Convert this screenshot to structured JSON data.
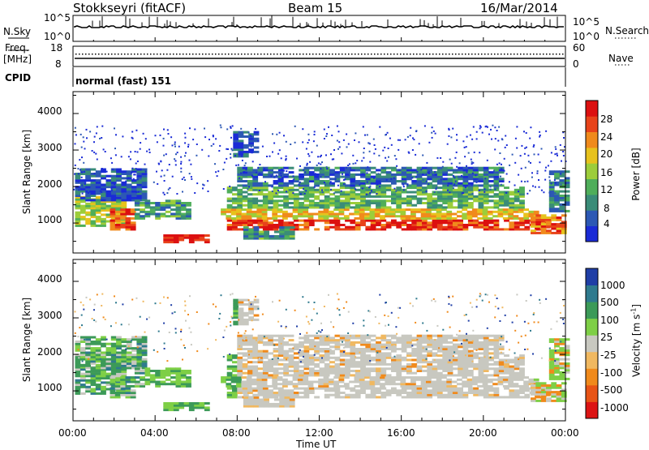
{
  "header": {
    "station": "Stokkseyri (fitACF)",
    "beam": "Beam 15",
    "date": "16/Mar/2014"
  },
  "noise_panel": {
    "left_label": "N.Sky",
    "right_label": "N.Search",
    "ytick_top": "10^5",
    "ytick_bottom": "10^0"
  },
  "freq_panel": {
    "left_label_line1": "Freq.",
    "left_label_line2": "[MHz]",
    "right_label": "Nave",
    "left_ticks": [
      "18",
      "8"
    ],
    "right_ticks": [
      "60",
      "0"
    ]
  },
  "cpid_panel": {
    "label": "CPID",
    "value": "normal (fast) 151"
  },
  "xaxis": {
    "label": "Time UT",
    "ticks": [
      "00:00",
      "04:00",
      "08:00",
      "12:00",
      "16:00",
      "20:00",
      "00:00"
    ]
  },
  "chart_data": [
    {
      "type": "heatmap",
      "panel": "power",
      "ylabel": "Slant Range [km]",
      "xlabel": "Time UT",
      "xlim": [
        0,
        24
      ],
      "ylim": [
        180,
        4600
      ],
      "yticks": [
        "1000",
        "2000",
        "3000",
        "4000"
      ],
      "colorbar": {
        "label": "Power [dB]",
        "ticks": [
          "4",
          "8",
          "12",
          "16",
          "20",
          "24",
          "28"
        ],
        "range": [
          0,
          32
        ],
        "colors": [
          "#1a2bd6",
          "#2c58b4",
          "#3a8c78",
          "#4fae5a",
          "#9ccd3a",
          "#e7c21d",
          "#f08a1c",
          "#e8431a",
          "#dc1010"
        ]
      }
    },
    {
      "type": "heatmap",
      "panel": "velocity",
      "ylabel": "Slant Range [km]",
      "xlabel": "Time UT",
      "xlim": [
        0,
        24
      ],
      "ylim": [
        180,
        4600
      ],
      "yticks": [
        "1000",
        "2000",
        "3000",
        "4000"
      ],
      "colorbar": {
        "label": "Velocity [m s",
        "label_sup": "-1",
        "label_close": "]",
        "ticks": [
          "1000",
          "500",
          "100",
          "25",
          "-25",
          "-100",
          "-500",
          "-1000"
        ],
        "colors": [
          "#1f3ea6",
          "#2f7a8e",
          "#3c9a58",
          "#7ecf46",
          "#c8c8c0",
          "#f0b860",
          "#f08a1c",
          "#e85416",
          "#dc1414"
        ]
      }
    }
  ]
}
